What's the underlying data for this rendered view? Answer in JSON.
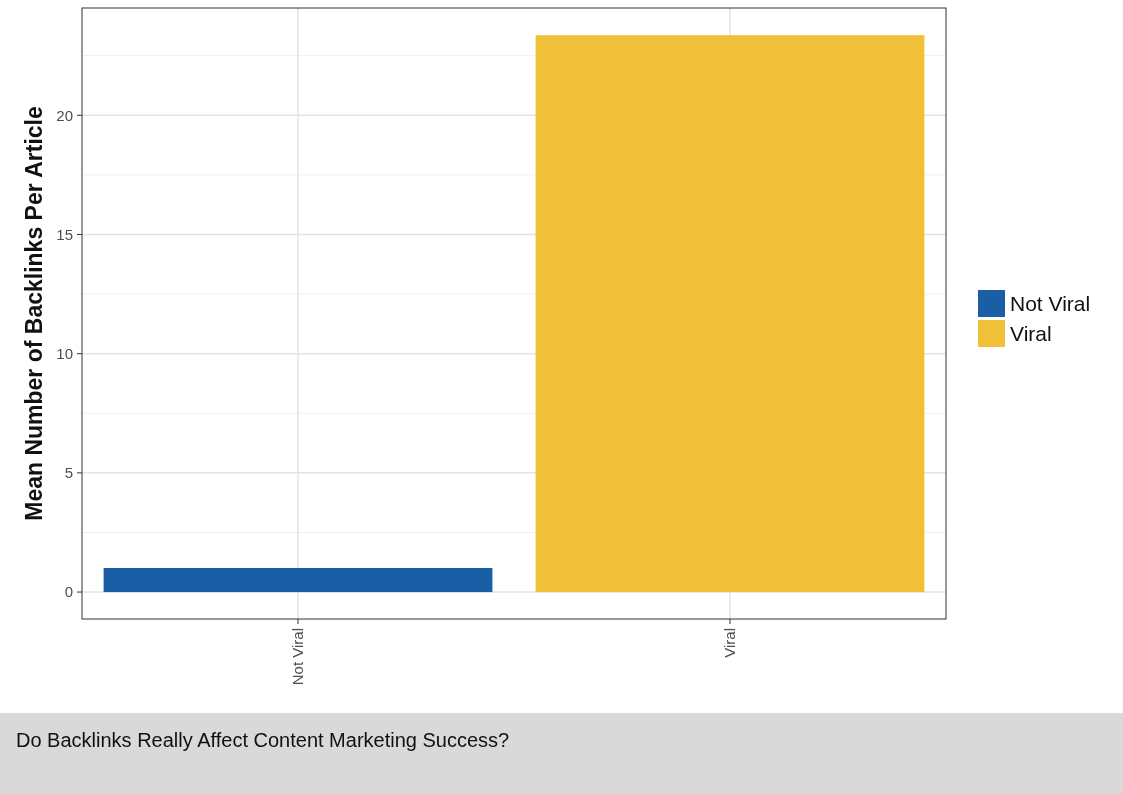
{
  "chart_data": {
    "type": "bar",
    "ylabel": "Mean Number of Backlinks Per Article",
    "categories": [
      "Not Viral",
      "Viral"
    ],
    "series": [
      {
        "name": "Not Viral",
        "color": "#1a5fa6",
        "values": [
          1.01,
          null
        ]
      },
      {
        "name": "Viral",
        "color": "#f0c138",
        "values": [
          null,
          23.36
        ]
      }
    ],
    "ylim": [
      -1.13,
      24.5
    ],
    "yticks": [
      0,
      5,
      10,
      15,
      20
    ],
    "grid": true,
    "legend": "right",
    "annotations": [
      "Do Backlinks Really Affect Content Marketing Success?"
    ]
  }
}
